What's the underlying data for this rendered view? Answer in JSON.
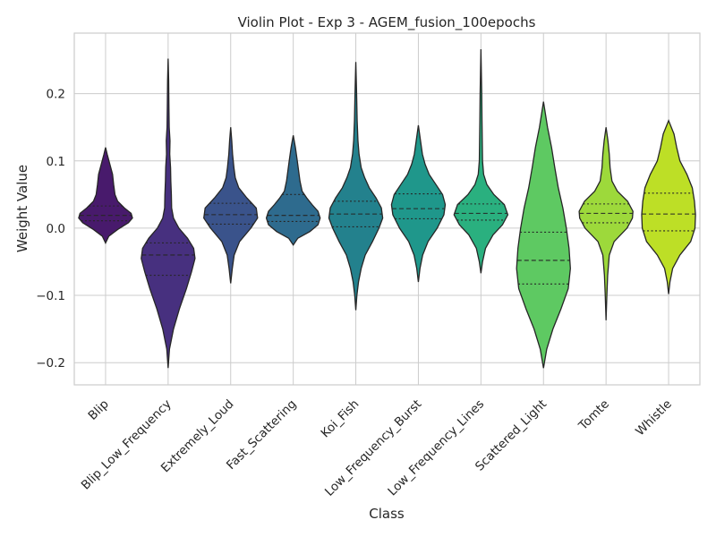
{
  "chart_data": {
    "type": "violin",
    "title": "Violin Plot - Exp 3 - AGEM_fusion_100epochs",
    "xlabel": "Class",
    "ylabel": "Weight Value",
    "ylim": [
      -0.233,
      0.29
    ],
    "yticks": [
      -0.2,
      -0.1,
      0.0,
      0.1,
      0.2
    ],
    "ytick_labels": [
      "−0.2",
      "−0.1",
      "0.0",
      "0.1",
      "0.2"
    ],
    "grid": true,
    "categories": [
      "Blip",
      "Blip_Low_Frequency",
      "Extremely_Loud",
      "Fast_Scattering",
      "Koi_Fish",
      "Low_Frequency_Burst",
      "Low_Frequency_Lines",
      "Scattered_Light",
      "Tomte",
      "Whistle"
    ],
    "colors": [
      "#481a6c",
      "#47307f",
      "#3a538b",
      "#2e6b8e",
      "#23818d",
      "#1f978b",
      "#2ab07f",
      "#5ec962",
      "#9dd93b",
      "#bddf26"
    ],
    "series": [
      {
        "min": -0.022,
        "max": 0.12,
        "q1": 0.011,
        "median": 0.019,
        "q3": 0.033,
        "profile": [
          [
            -0.022,
            0
          ],
          [
            -0.012,
            0.12
          ],
          [
            -0.002,
            0.45
          ],
          [
            0.008,
            0.85
          ],
          [
            0.015,
            1.0
          ],
          [
            0.022,
            0.95
          ],
          [
            0.03,
            0.7
          ],
          [
            0.04,
            0.45
          ],
          [
            0.05,
            0.35
          ],
          [
            0.065,
            0.3
          ],
          [
            0.08,
            0.26
          ],
          [
            0.095,
            0.16
          ],
          [
            0.11,
            0.06
          ],
          [
            0.12,
            0
          ]
        ]
      },
      {
        "min": -0.208,
        "max": 0.252,
        "q1": -0.07,
        "median": -0.04,
        "q3": -0.022,
        "profile": [
          [
            -0.208,
            0
          ],
          [
            -0.18,
            0.05
          ],
          [
            -0.15,
            0.2
          ],
          [
            -0.12,
            0.42
          ],
          [
            -0.09,
            0.68
          ],
          [
            -0.065,
            0.87
          ],
          [
            -0.045,
            1.0
          ],
          [
            -0.03,
            0.95
          ],
          [
            -0.015,
            0.72
          ],
          [
            0.0,
            0.4
          ],
          [
            0.015,
            0.2
          ],
          [
            0.03,
            0.13
          ],
          [
            0.05,
            0.12
          ],
          [
            0.07,
            0.1
          ],
          [
            0.09,
            0.09
          ],
          [
            0.11,
            0.06
          ],
          [
            0.13,
            0.07
          ],
          [
            0.15,
            0.04
          ],
          [
            0.18,
            0.03
          ],
          [
            0.22,
            0.02
          ],
          [
            0.252,
            0
          ]
        ]
      },
      {
        "min": -0.082,
        "max": 0.15,
        "q1": 0.006,
        "median": 0.02,
        "q3": 0.037,
        "profile": [
          [
            -0.082,
            0
          ],
          [
            -0.06,
            0.06
          ],
          [
            -0.04,
            0.13
          ],
          [
            -0.02,
            0.33
          ],
          [
            0.0,
            0.75
          ],
          [
            0.015,
            1.0
          ],
          [
            0.03,
            0.95
          ],
          [
            0.045,
            0.6
          ],
          [
            0.06,
            0.3
          ],
          [
            0.075,
            0.17
          ],
          [
            0.09,
            0.12
          ],
          [
            0.11,
            0.07
          ],
          [
            0.13,
            0.04
          ],
          [
            0.15,
            0
          ]
        ]
      },
      {
        "min": -0.025,
        "max": 0.138,
        "q1": 0.01,
        "median": 0.019,
        "q3": 0.05,
        "profile": [
          [
            -0.025,
            0
          ],
          [
            -0.015,
            0.17
          ],
          [
            -0.005,
            0.62
          ],
          [
            0.005,
            0.92
          ],
          [
            0.015,
            1.0
          ],
          [
            0.025,
            0.92
          ],
          [
            0.035,
            0.7
          ],
          [
            0.045,
            0.5
          ],
          [
            0.055,
            0.33
          ],
          [
            0.07,
            0.25
          ],
          [
            0.085,
            0.2
          ],
          [
            0.1,
            0.15
          ],
          [
            0.12,
            0.08
          ],
          [
            0.138,
            0
          ]
        ]
      },
      {
        "min": -0.122,
        "max": 0.247,
        "q1": 0.002,
        "median": 0.021,
        "q3": 0.04,
        "profile": [
          [
            -0.122,
            0
          ],
          [
            -0.1,
            0.04
          ],
          [
            -0.08,
            0.1
          ],
          [
            -0.06,
            0.2
          ],
          [
            -0.04,
            0.35
          ],
          [
            -0.02,
            0.62
          ],
          [
            0.0,
            0.86
          ],
          [
            0.015,
            1.0
          ],
          [
            0.03,
            0.95
          ],
          [
            0.045,
            0.75
          ],
          [
            0.06,
            0.5
          ],
          [
            0.075,
            0.33
          ],
          [
            0.09,
            0.2
          ],
          [
            0.11,
            0.12
          ],
          [
            0.13,
            0.08
          ],
          [
            0.16,
            0.05
          ],
          [
            0.2,
            0.03
          ],
          [
            0.247,
            0
          ]
        ]
      },
      {
        "min": -0.08,
        "max": 0.153,
        "q1": 0.014,
        "median": 0.029,
        "q3": 0.051,
        "profile": [
          [
            -0.08,
            0
          ],
          [
            -0.06,
            0.06
          ],
          [
            -0.04,
            0.16
          ],
          [
            -0.02,
            0.36
          ],
          [
            0.0,
            0.7
          ],
          [
            0.02,
            0.95
          ],
          [
            0.035,
            1.0
          ],
          [
            0.05,
            0.9
          ],
          [
            0.065,
            0.65
          ],
          [
            0.08,
            0.4
          ],
          [
            0.095,
            0.25
          ],
          [
            0.11,
            0.15
          ],
          [
            0.13,
            0.08
          ],
          [
            0.153,
            0
          ]
        ]
      },
      {
        "min": -0.067,
        "max": 0.266,
        "q1": 0.012,
        "median": 0.022,
        "q3": 0.036,
        "profile": [
          [
            -0.067,
            0
          ],
          [
            -0.05,
            0.06
          ],
          [
            -0.03,
            0.17
          ],
          [
            -0.01,
            0.45
          ],
          [
            0.005,
            0.8
          ],
          [
            0.02,
            1.0
          ],
          [
            0.035,
            0.87
          ],
          [
            0.05,
            0.48
          ],
          [
            0.065,
            0.22
          ],
          [
            0.08,
            0.1
          ],
          [
            0.1,
            0.06
          ],
          [
            0.13,
            0.05
          ],
          [
            0.16,
            0.04
          ],
          [
            0.2,
            0.03
          ],
          [
            0.266,
            0
          ]
        ]
      },
      {
        "min": -0.208,
        "max": 0.188,
        "q1": -0.083,
        "median": -0.048,
        "q3": -0.006,
        "profile": [
          [
            -0.208,
            0
          ],
          [
            -0.18,
            0.12
          ],
          [
            -0.15,
            0.35
          ],
          [
            -0.12,
            0.65
          ],
          [
            -0.09,
            0.92
          ],
          [
            -0.06,
            1.0
          ],
          [
            -0.03,
            0.95
          ],
          [
            0.0,
            0.85
          ],
          [
            0.03,
            0.72
          ],
          [
            0.06,
            0.55
          ],
          [
            0.09,
            0.42
          ],
          [
            0.12,
            0.3
          ],
          [
            0.15,
            0.15
          ],
          [
            0.188,
            0
          ]
        ]
      },
      {
        "min": -0.137,
        "max": 0.15,
        "q1": 0.008,
        "median": 0.022,
        "q3": 0.036,
        "profile": [
          [
            -0.137,
            0
          ],
          [
            -0.1,
            0.03
          ],
          [
            -0.07,
            0.06
          ],
          [
            -0.04,
            0.12
          ],
          [
            -0.02,
            0.3
          ],
          [
            0.0,
            0.78
          ],
          [
            0.015,
            0.98
          ],
          [
            0.025,
            1.0
          ],
          [
            0.04,
            0.8
          ],
          [
            0.055,
            0.42
          ],
          [
            0.07,
            0.22
          ],
          [
            0.09,
            0.15
          ],
          [
            0.11,
            0.12
          ],
          [
            0.13,
            0.07
          ],
          [
            0.15,
            0
          ]
        ]
      },
      {
        "min": -0.098,
        "max": 0.16,
        "q1": -0.004,
        "median": 0.021,
        "q3": 0.052,
        "profile": [
          [
            -0.098,
            0
          ],
          [
            -0.08,
            0.05
          ],
          [
            -0.06,
            0.15
          ],
          [
            -0.04,
            0.42
          ],
          [
            -0.02,
            0.82
          ],
          [
            0.0,
            0.98
          ],
          [
            0.02,
            1.0
          ],
          [
            0.04,
            0.96
          ],
          [
            0.06,
            0.88
          ],
          [
            0.08,
            0.68
          ],
          [
            0.1,
            0.42
          ],
          [
            0.12,
            0.3
          ],
          [
            0.14,
            0.2
          ],
          [
            0.16,
            0
          ]
        ]
      }
    ]
  }
}
